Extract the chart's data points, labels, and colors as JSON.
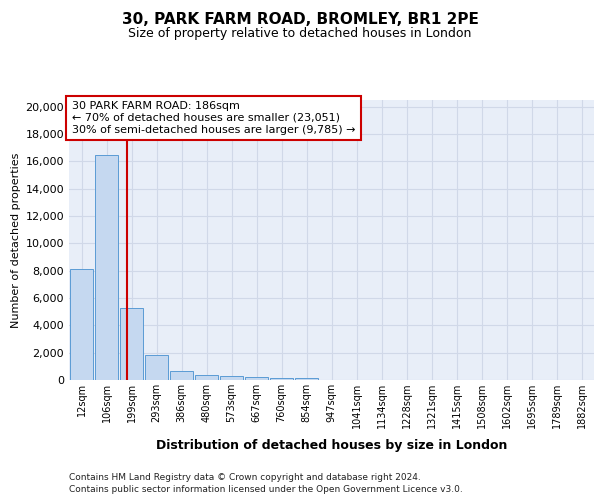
{
  "title": "30, PARK FARM ROAD, BROMLEY, BR1 2PE",
  "subtitle": "Size of property relative to detached houses in London",
  "xlabel": "Distribution of detached houses by size in London",
  "ylabel": "Number of detached properties",
  "categories": [
    "12sqm",
    "106sqm",
    "199sqm",
    "293sqm",
    "386sqm",
    "480sqm",
    "573sqm",
    "667sqm",
    "760sqm",
    "854sqm",
    "947sqm",
    "1041sqm",
    "1134sqm",
    "1228sqm",
    "1321sqm",
    "1415sqm",
    "1508sqm",
    "1602sqm",
    "1695sqm",
    "1789sqm",
    "1882sqm"
  ],
  "bar_heights": [
    8100,
    16500,
    5300,
    1850,
    650,
    350,
    275,
    200,
    175,
    150,
    0,
    0,
    0,
    0,
    0,
    0,
    0,
    0,
    0,
    0,
    0
  ],
  "bar_color": "#c5d8f0",
  "bar_edge_color": "#5b9bd5",
  "vline_x": 1.82,
  "annotation_text": "30 PARK FARM ROAD: 186sqm\n← 70% of detached houses are smaller (23,051)\n30% of semi-detached houses are larger (9,785) →",
  "annotation_box_color": "#ffffff",
  "annotation_border_color": "#cc0000",
  "vline_color": "#cc0000",
  "grid_color": "#d0d8e8",
  "background_color": "#e8eef8",
  "ylim": [
    0,
    20500
  ],
  "yticks": [
    0,
    2000,
    4000,
    6000,
    8000,
    10000,
    12000,
    14000,
    16000,
    18000,
    20000
  ],
  "footer_line1": "Contains HM Land Registry data © Crown copyright and database right 2024.",
  "footer_line2": "Contains public sector information licensed under the Open Government Licence v3.0."
}
